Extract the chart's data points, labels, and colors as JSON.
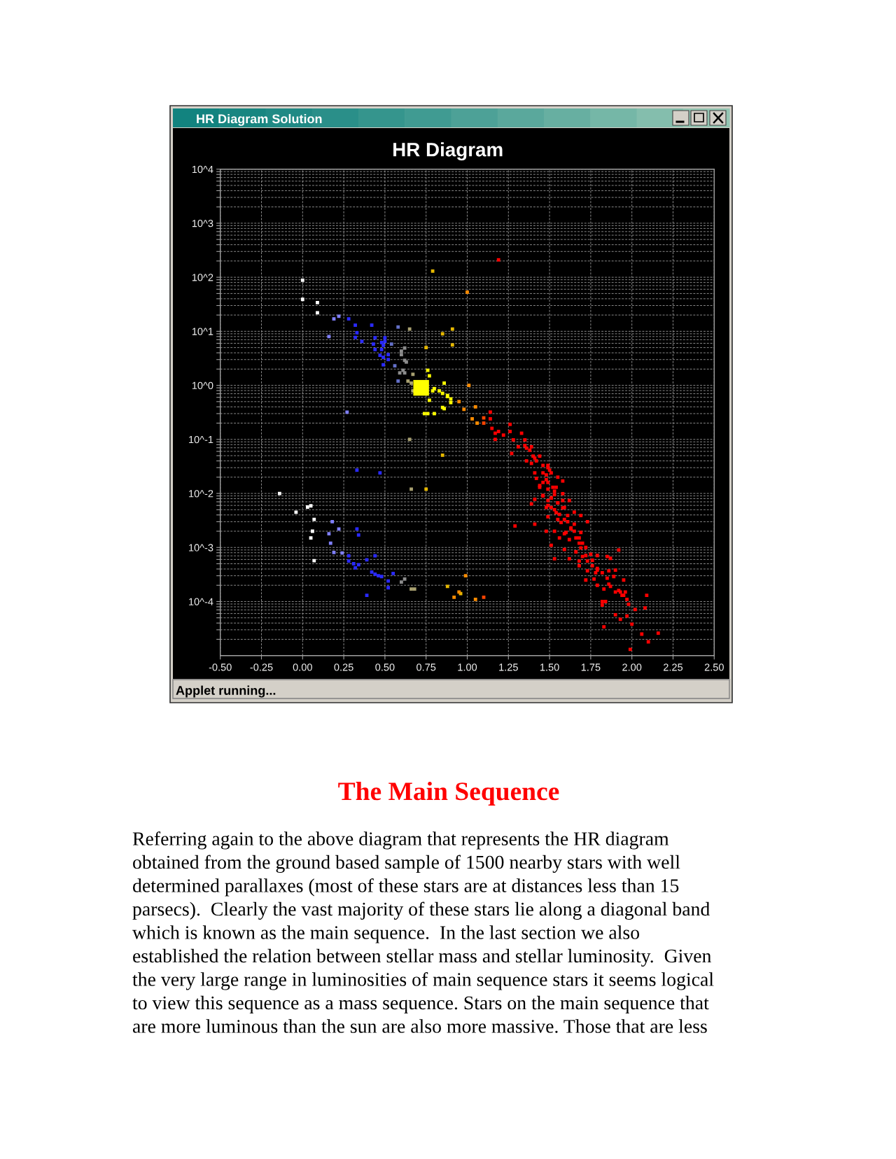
{
  "chart_data": {
    "type": "scatter",
    "title": "HR Diagram",
    "xlim": [
      -0.5,
      2.5
    ],
    "xticks": [
      {
        "value": -0.5,
        "label": "-0.50"
      },
      {
        "value": -0.25,
        "label": "-0.25"
      },
      {
        "value": 0,
        "label": "0.00"
      },
      {
        "value": 0.25,
        "label": "0.25"
      },
      {
        "value": 0.5,
        "label": "0.50"
      },
      {
        "value": 0.75,
        "label": "0.75"
      },
      {
        "value": 1,
        "label": "1.00"
      },
      {
        "value": 1.25,
        "label": "1.25"
      },
      {
        "value": 1.5,
        "label": "1.50"
      },
      {
        "value": 1.75,
        "label": "1.75"
      },
      {
        "value": 2,
        "label": "2.00"
      },
      {
        "value": 2.25,
        "label": "2.25"
      },
      {
        "value": 2.5,
        "label": "2.50"
      }
    ],
    "ylim": [
      1e-05,
      10000
    ],
    "yticks": [
      {
        "value": 10000,
        "label": "10^4"
      },
      {
        "value": 1000,
        "label": "10^3"
      },
      {
        "value": 100,
        "label": "10^2"
      },
      {
        "value": 10,
        "label": "10^1"
      },
      {
        "value": 1,
        "label": "10^0"
      },
      {
        "value": 0.1,
        "label": "10^-1"
      },
      {
        "value": 0.01,
        "label": "10^-2"
      },
      {
        "value": 0.001,
        "label": "10^-3"
      },
      {
        "value": 0.0001,
        "label": "10^-4"
      }
    ],
    "log": "y",
    "grid": true,
    "marker": "square",
    "series": [
      {
        "color": "#ffffff",
        "x": [
          0.0,
          0.0,
          0.09,
          0.09,
          -0.14,
          -0.04,
          0.03,
          0.05,
          0.07,
          0.06,
          0.05,
          0.07
        ],
        "values": [
          88,
          39,
          34,
          22,
          0.01,
          0.0045,
          0.0056,
          0.0059,
          0.0033,
          0.002,
          0.0015,
          0.00057
        ]
      },
      {
        "color": "#8080ff",
        "x": [
          0.16,
          0.19,
          0.22,
          0.27,
          0.18,
          0.22,
          0.16,
          0.17,
          0.19,
          0.24
        ],
        "values": [
          8.0,
          17,
          19,
          0.32,
          0.003,
          0.0022,
          0.0018,
          0.0012,
          0.00081,
          0.00079
        ]
      },
      {
        "color": "#6470c8",
        "x": [
          0.58,
          0.54,
          0.56,
          0.58
        ],
        "values": [
          12,
          5.8,
          2.3,
          1.2
        ]
      },
      {
        "color": "#2a2aff",
        "x": [
          0.28,
          0.32,
          0.42,
          0.33,
          0.32,
          0.36,
          0.44,
          0.43,
          0.48,
          0.5,
          0.5,
          0.49,
          0.44,
          0.48,
          0.47,
          0.49,
          0.52,
          0.52,
          0.49,
          0.33,
          0.47,
          0.28,
          0.28,
          0.33,
          0.34,
          0.39,
          0.44,
          0.31,
          0.34,
          0.32,
          0.42,
          0.44,
          0.46,
          0.48,
          0.55,
          0.52,
          0.52,
          0.39
        ],
        "values": [
          17,
          13,
          13,
          9.4,
          7.7,
          6.5,
          7.6,
          5.8,
          6.2,
          7.6,
          6.5,
          5.5,
          4.6,
          4.6,
          3.6,
          3.3,
          3.7,
          3.0,
          2.4,
          0.027,
          0.024,
          0.0007,
          0.00056,
          0.0022,
          0.0017,
          0.00059,
          0.0007,
          0.0005,
          0.00048,
          0.00042,
          0.00035,
          0.00032,
          0.0003,
          0.00029,
          0.00033,
          0.00024,
          0.00018,
          0.00013
        ]
      },
      {
        "color": "#8c8c8c",
        "x": [
          0.6,
          0.62,
          0.6,
          0.62,
          0.63,
          0.61,
          0.62,
          0.59,
          0.6,
          0.62
        ],
        "values": [
          4.3,
          4.9,
          3.7,
          2.9,
          2.7,
          1.9,
          1.7,
          1.7,
          0.00023,
          0.00026
        ]
      },
      {
        "color": "#a8a070",
        "x": [
          0.65,
          0.64,
          0.67,
          0.66,
          0.67,
          0.65,
          0.66,
          0.66,
          0.68
        ],
        "values": [
          11,
          1.2,
          1.6,
          1.1,
          0.79,
          0.1,
          0.012,
          0.00017,
          0.00017
        ]
      },
      {
        "color": "#e6b800",
        "x": [
          0.79,
          0.85,
          0.75,
          0.91,
          0.91,
          0.85,
          0.75,
          0.88,
          0.96
        ],
        "values": [
          130,
          9.0,
          5.0,
          11,
          5.6,
          0.051,
          0.012,
          0.00019,
          0.00014
        ]
      },
      {
        "color": "#ffff00",
        "x": [
          0.76,
          0.77,
          0.86,
          0.74,
          0.76,
          0.8,
          0.86,
          0.8,
          0.83,
          0.85,
          0.88,
          0.9,
          0.9,
          0.77,
          0.79,
          0.85,
          0.88
        ],
        "values": [
          1.9,
          1.5,
          1.1,
          0.3,
          0.3,
          0.3,
          0.37,
          0.87,
          0.79,
          0.71,
          0.62,
          0.56,
          0.48,
          0.53,
          0.79,
          0.39,
          0.65
        ]
      },
      {
        "color": "#ff8c00",
        "x": [
          1.0,
          1.01,
          0.95,
          0.98,
          1.05,
          1.03,
          1.06,
          0.99,
          0.95,
          0.92,
          1.05
        ],
        "values": [
          53,
          1.0,
          0.5,
          0.36,
          0.4,
          0.24,
          0.2,
          0.0003,
          0.00015,
          0.00012,
          0.00011
        ]
      },
      {
        "color": "#ff4400",
        "x": [
          1.1,
          1.1,
          1.1
        ],
        "values": [
          0.25,
          0.2,
          0.00012
        ]
      },
      {
        "color": "#ff0000",
        "x": [
          1.19,
          1.14,
          1.14,
          1.15,
          1.17,
          1.19,
          1.22,
          1.26,
          1.26,
          1.17,
          1.28,
          1.27,
          1.31,
          1.33,
          1.35,
          1.36,
          1.39,
          1.4,
          1.36,
          1.42,
          1.44,
          1.46,
          1.49,
          1.51,
          1.41,
          1.42,
          1.48,
          1.55,
          1.58,
          1.44,
          1.49,
          1.53,
          1.46,
          1.51,
          1.58,
          1.62,
          1.41,
          1.39,
          1.48,
          1.53,
          1.59,
          1.65,
          1.69,
          1.73,
          1.49,
          1.55,
          1.61,
          1.65,
          1.29,
          1.41,
          1.48,
          1.53,
          1.59,
          1.65,
          1.69,
          1.56,
          1.62,
          1.68,
          1.72,
          1.51,
          1.59,
          1.66,
          1.7,
          1.75,
          1.79,
          1.53,
          1.62,
          1.68,
          1.73,
          1.85,
          1.87,
          1.92,
          1.68,
          1.73,
          1.78,
          1.82,
          1.86,
          1.9,
          1.89,
          1.72,
          1.77,
          1.79,
          1.83,
          1.86,
          1.87,
          1.9,
          1.95,
          1.93,
          1.96,
          1.94,
          1.97,
          1.98,
          2.09,
          2.08,
          2.02,
          1.82,
          1.84,
          1.82,
          1.9,
          1.93,
          1.97,
          2.0,
          1.83,
          2.06,
          2.16,
          2.1,
          1.99,
          1.52,
          1.55,
          1.59,
          1.51,
          1.46,
          1.53,
          1.56,
          1.63,
          1.68,
          1.7,
          1.76,
          1.79,
          1.39,
          1.49,
          1.49,
          1.58,
          1.38,
          1.41,
          1.46,
          1.5,
          1.44,
          1.49,
          1.54,
          1.46,
          1.51,
          1.55,
          1.49,
          1.58,
          1.54,
          1.61,
          1.57,
          1.63,
          1.6,
          1.66,
          1.69,
          1.72,
          1.76,
          1.79,
          1.85,
          1.92,
          1.95,
          1.35,
          1.48
        ],
        "values": [
          210,
          0.32,
          0.24,
          0.16,
          0.13,
          0.14,
          0.12,
          0.19,
          0.14,
          0.1,
          0.098,
          0.055,
          0.073,
          0.13,
          0.098,
          0.069,
          0.073,
          0.049,
          0.04,
          0.04,
          0.049,
          0.033,
          0.03,
          0.024,
          0.024,
          0.019,
          0.018,
          0.02,
          0.017,
          0.013,
          0.012,
          0.011,
          0.009,
          0.0082,
          0.0099,
          0.0074,
          0.0078,
          0.0064,
          0.0055,
          0.005,
          0.0055,
          0.0045,
          0.0039,
          0.003,
          0.0037,
          0.0033,
          0.003,
          0.0027,
          0.0025,
          0.0027,
          0.002,
          0.002,
          0.0018,
          0.002,
          0.0019,
          0.0015,
          0.0014,
          0.0012,
          0.001,
          0.0011,
          0.00092,
          0.00083,
          0.00068,
          0.00075,
          0.00071,
          0.00062,
          0.00062,
          0.00056,
          0.00056,
          0.00068,
          0.00063,
          0.0009,
          0.00046,
          0.00037,
          0.00034,
          0.00034,
          0.00037,
          0.00038,
          0.00029,
          0.00025,
          0.00026,
          0.0002,
          0.00017,
          0.00021,
          0.00019,
          0.00015,
          0.00025,
          0.00015,
          0.00015,
          0.00013,
          0.00011,
          8.9e-05,
          0.00013,
          7.6e-05,
          7.1e-05,
          0.0001,
          0.0001,
          8.6e-05,
          5.7e-05,
          4.7e-05,
          5.4e-05,
          3.8e-05,
          3.4e-05,
          2.5e-05,
          2.6e-05,
          1.8e-05,
          1.3e-05,
          0.013,
          0.0067,
          0.0033,
          0.0055,
          0.016,
          0.0095,
          0.0041,
          0.0022,
          0.0015,
          0.0012,
          0.00046,
          0.00041,
          0.036,
          0.033,
          0.0074,
          0.0074,
          0.063,
          0.045,
          0.024,
          0.027,
          0.014,
          0.016,
          0.013,
          0.0092,
          0.0083,
          0.0067,
          0.006,
          0.0054,
          0.0044,
          0.0039,
          0.0029,
          0.0023,
          0.0019,
          0.0015,
          0.00098,
          0.00071,
          0.00058,
          0.00038,
          0.00027,
          0.00016,
          0.00013,
          0.077,
          0.022
        ]
      },
      {
        "type": "bubble",
        "color": "#ffff00",
        "x": [
          0.72
        ],
        "values": [
          0.9
        ],
        "sizes": [
          1
        ]
      }
    ],
    "annotations": [
      "HR Diagram Solution",
      "Applet running...",
      "The Main Sequence",
      "Referring again to the above diagram that represents the HR diagram\nobtained from the ground based sample of 1500 nearby stars with well\ndetermined parallaxes (most of these stars are at distances less than 15\nparsecs).  Clearly the vast majority of these stars lie along a diagonal band\nwhich is known as the main sequence.  In the last section we also\nestablished the relation between stellar mass and stellar luminosity.  Given\nthe very large range in luminosities of main sequence stars it seems logical\nto view this sequence as a mass sequence. Stars on the main sequence that\nare more luminous than the sun are also more massive. Those that are less"
    ]
  }
}
